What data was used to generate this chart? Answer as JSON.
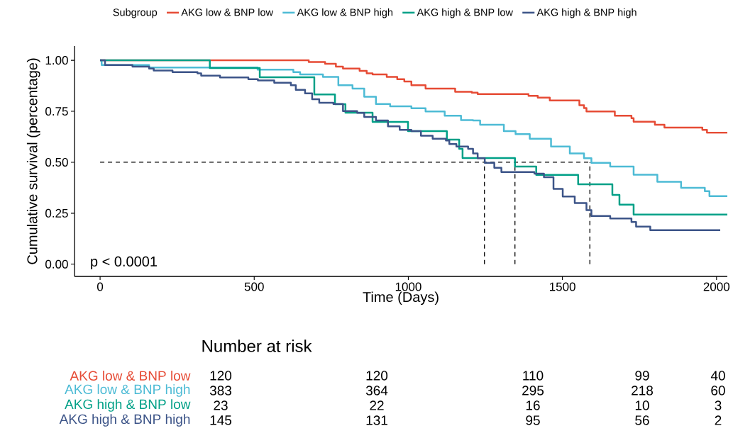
{
  "chart_data": [
    {
      "type": "step",
      "xlabel": "Time (Days)",
      "ylabel": "Cumulative survival (percentage)",
      "legend_title": "Subgroup",
      "legend": "top",
      "xlim": [
        -83,
        2035
      ],
      "ylim": [
        -0.06,
        1.07
      ],
      "xticks": [
        0,
        500,
        1000,
        1500,
        2000
      ],
      "yticks": [
        {
          "value": 0,
          "label": "0.00"
        },
        {
          "value": 0.25,
          "label": "0.25"
        },
        {
          "value": 0.5,
          "label": "0.50"
        },
        {
          "value": 0.75,
          "label": "0.75"
        },
        {
          "value": 1,
          "label": "1.00"
        }
      ],
      "annotations": [
        "p < 0.0001"
      ],
      "ref_lines": [
        {
          "axis": "y",
          "value": 0.5,
          "line_style": "dashed",
          "color": "#000000"
        },
        {
          "axis": "x",
          "value": 1247,
          "line_style": "dashed",
          "color": "#000000"
        },
        {
          "axis": "x",
          "value": 1346,
          "line_style": "dashed",
          "color": "#000000"
        },
        {
          "axis": "x",
          "value": 1589,
          "line_style": "dashed",
          "color": "#000000"
        }
      ],
      "series": [
        {
          "name": "AKG low & BNP low",
          "color": "#E64B35",
          "x": [
            0,
            677,
            730,
            765,
            788,
            842,
            865,
            884,
            930,
            964,
            987,
            1010,
            1056,
            1152,
            1206,
            1225,
            1390,
            1420,
            1459,
            1555,
            1570,
            1578,
            1670,
            1724,
            1731,
            1800,
            1831,
            1954,
            1969,
            1977,
            2035
          ],
          "values": [
            1.0,
            0.992,
            0.983,
            0.969,
            0.96,
            0.948,
            0.936,
            0.931,
            0.919,
            0.907,
            0.896,
            0.878,
            0.861,
            0.846,
            0.841,
            0.834,
            0.826,
            0.817,
            0.803,
            0.78,
            0.766,
            0.749,
            0.728,
            0.716,
            0.699,
            0.684,
            0.67,
            0.659,
            0.645,
            0.645,
            0.645
          ]
        },
        {
          "name": "AKG low & BNP high",
          "color": "#4DBBD5",
          "x": [
            0,
            5,
            159,
            511,
            627,
            649,
            723,
            773,
            819,
            857,
            895,
            941,
            1010,
            1056,
            1118,
            1171,
            1210,
            1233,
            1310,
            1348,
            1394,
            1463,
            1524,
            1570,
            1594,
            1655,
            1731,
            1808,
            1885,
            1962,
            1977,
            2035
          ],
          "values": [
            1.0,
            0.977,
            0.965,
            0.954,
            0.942,
            0.931,
            0.919,
            0.878,
            0.861,
            0.821,
            0.786,
            0.774,
            0.765,
            0.749,
            0.728,
            0.707,
            0.705,
            0.684,
            0.653,
            0.638,
            0.615,
            0.577,
            0.543,
            0.52,
            0.497,
            0.479,
            0.439,
            0.404,
            0.375,
            0.358,
            0.334,
            0.334
          ]
        },
        {
          "name": "AKG high & BNP low",
          "color": "#00A087",
          "x": [
            0,
            356,
            518,
            695,
            762,
            796,
            884,
            999,
            1125,
            1165,
            1176,
            1346,
            1415,
            1551,
            1662,
            1685,
            1731,
            2035
          ],
          "values": [
            1.0,
            0.962,
            0.917,
            0.833,
            0.785,
            0.743,
            0.698,
            0.653,
            0.611,
            0.566,
            0.521,
            0.479,
            0.438,
            0.392,
            0.34,
            0.292,
            0.243,
            0.243
          ]
        },
        {
          "name": "AKG high & BNP high",
          "color": "#3C5488",
          "x": [
            0,
            16,
            105,
            159,
            174,
            235,
            316,
            328,
            389,
            481,
            512,
            565,
            619,
            635,
            665,
            688,
            711,
            757,
            788,
            834,
            857,
            895,
            934,
            972,
            1010,
            1041,
            1079,
            1122,
            1133,
            1156,
            1194,
            1210,
            1225,
            1248,
            1279,
            1302,
            1409,
            1440,
            1471,
            1501,
            1540,
            1578,
            1594,
            1655,
            1724,
            1739,
            1785,
            2012
          ],
          "values": [
            1.0,
            0.977,
            0.969,
            0.96,
            0.95,
            0.942,
            0.936,
            0.925,
            0.916,
            0.907,
            0.901,
            0.89,
            0.878,
            0.855,
            0.838,
            0.809,
            0.792,
            0.786,
            0.751,
            0.742,
            0.722,
            0.705,
            0.676,
            0.659,
            0.653,
            0.63,
            0.615,
            0.607,
            0.589,
            0.577,
            0.566,
            0.543,
            0.52,
            0.497,
            0.473,
            0.452,
            0.444,
            0.427,
            0.369,
            0.332,
            0.3,
            0.265,
            0.236,
            0.224,
            0.207,
            0.184,
            0.167,
            0.167
          ]
        }
      ]
    },
    {
      "type": "other",
      "title": "Number at risk",
      "annotations": [
        "AKG low & BNP low",
        "120",
        "120",
        "110",
        "99",
        "40",
        "AKG low & BNP high",
        "383",
        "364",
        "295",
        "218",
        "60",
        "AKG high & BNP low",
        "23",
        "22",
        "16",
        "10",
        "3",
        "AKG high & BNP high",
        "145",
        "131",
        "95",
        "56",
        "2"
      ]
    }
  ]
}
